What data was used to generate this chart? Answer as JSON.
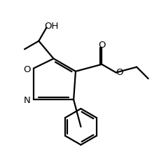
{
  "background_color": "#ffffff",
  "line_color": "#000000",
  "line_width": 1.6,
  "fig_width": 2.28,
  "fig_height": 2.28,
  "dpi": 100,
  "font_size": 9.5,
  "label_OH": "OH",
  "label_O_carbonyl": "O",
  "label_O_ester": "O",
  "label_N": "N",
  "label_O_ring": "O"
}
